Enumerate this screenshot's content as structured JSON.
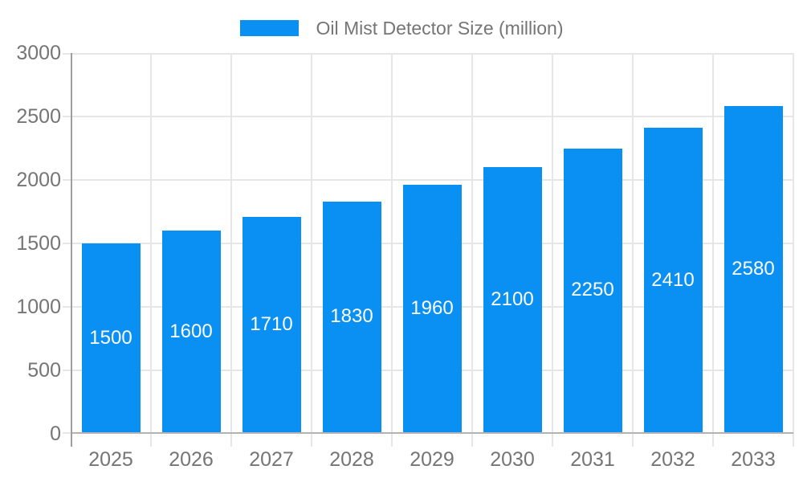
{
  "legend": {
    "label": "Oil Mist Detector Size (million)"
  },
  "chart_data": {
    "type": "bar",
    "title": "Oil Mist Detector Size (million)",
    "legend_position": "top",
    "categories": [
      "2025",
      "2026",
      "2027",
      "2028",
      "2029",
      "2030",
      "2031",
      "2032",
      "2033"
    ],
    "values": [
      1500,
      1600,
      1710,
      1830,
      1960,
      2100,
      2250,
      2410,
      2580
    ],
    "xlabel": "",
    "ylabel": "",
    "ylim": [
      0,
      3000
    ],
    "yticks": [
      0,
      500,
      1000,
      1500,
      2000,
      2500,
      3000
    ],
    "grid": true,
    "value_labels_shown": true,
    "colors": {
      "bar": "#0a90f2",
      "value_label": "#ffffff",
      "axis_label": "#757575",
      "grid_line": "#e6e6e6",
      "y_axis_line": "#9e9e9e",
      "baseline": "#b3b3b3",
      "background": "#ffffff"
    }
  }
}
